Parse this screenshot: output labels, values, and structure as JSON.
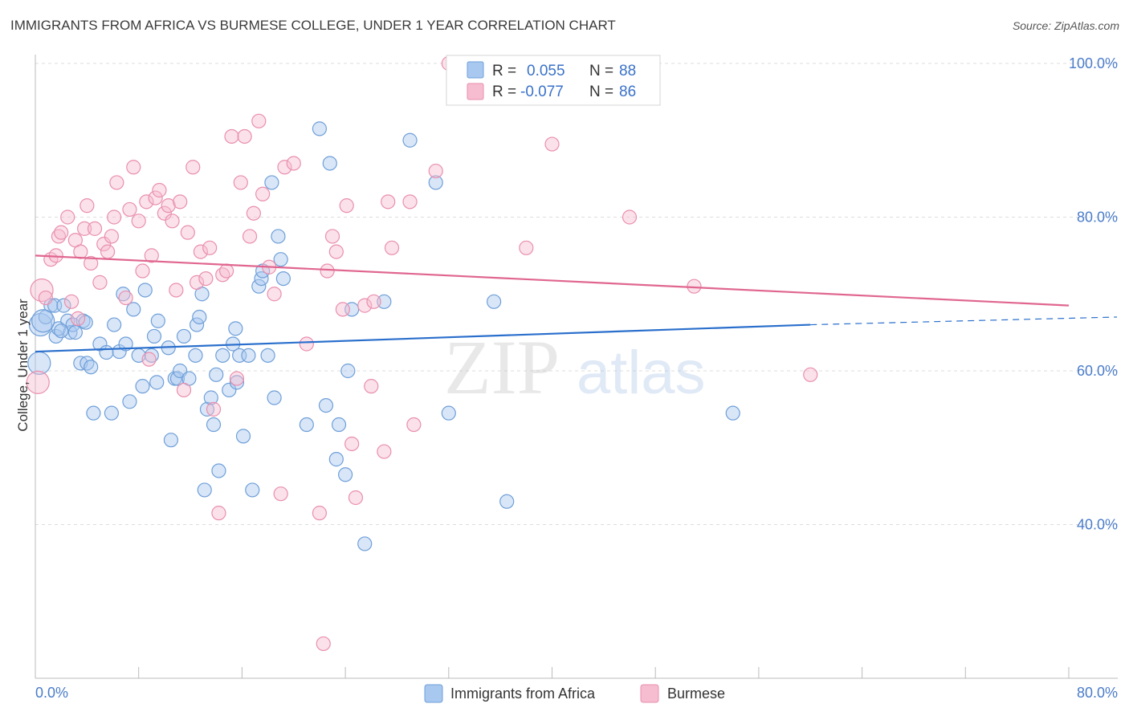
{
  "title": "IMMIGRANTS FROM AFRICA VS BURMESE COLLEGE, UNDER 1 YEAR CORRELATION CHART",
  "source": "Source: ZipAtlas.com",
  "watermark": {
    "zip": "ZIP",
    "atlas": "atlas"
  },
  "colors": {
    "blue_fill": "#a8c8f0",
    "blue_stroke": "#6f9fd8",
    "blue_line": "#2a6fcc",
    "pink_fill": "#f6bcd0",
    "pink_stroke": "#e98fae",
    "pink_line": "#e06690",
    "grid": "#dddddd",
    "tick_label": "#4a7cc9"
  },
  "legend_top": {
    "r_label": "R =",
    "n_label": "N =",
    "rows": [
      {
        "r": "0.055",
        "n": "88"
      },
      {
        "r": "-0.077",
        "n": "86"
      }
    ]
  },
  "chart_data": {
    "type": "scatter",
    "xlabel": "",
    "ylabel": "College, Under 1 year",
    "xlim": [
      0,
      80
    ],
    "ylim": [
      20,
      102
    ],
    "x_tick_labels": [
      "0.0%",
      "80.0%"
    ],
    "y_ticks": [
      40,
      60,
      80,
      100
    ],
    "y_tick_labels": [
      "40.0%",
      "60.0%",
      "80.0%",
      "100.0%"
    ],
    "grid": "horizontal dashed",
    "legend_placement": "top-center and bottom",
    "series": [
      {
        "name": "Immigrants from Africa",
        "color": "#a8c8f0",
        "r": 0.055,
        "n": 88,
        "trend": {
          "x0": 0,
          "y0": 62.5,
          "x1": 60,
          "y1": 66.0,
          "dash_to_x": 80,
          "dash_to_y": 67.0
        },
        "points": [
          [
            0.3,
            61
          ],
          [
            0.4,
            66
          ],
          [
            0.8,
            67
          ],
          [
            1.2,
            68.5
          ],
          [
            1.5,
            68.5
          ],
          [
            1.6,
            64.5
          ],
          [
            1.8,
            65.5
          ],
          [
            2.2,
            68.5
          ],
          [
            2.5,
            66.5
          ],
          [
            2.7,
            65
          ],
          [
            2.9,
            66
          ],
          [
            3.1,
            65
          ],
          [
            3.5,
            61
          ],
          [
            3.7,
            66.5
          ],
          [
            4.0,
            61
          ],
          [
            4.3,
            60.5
          ],
          [
            4.5,
            54.5
          ],
          [
            5.0,
            63.5
          ],
          [
            5.9,
            54.5
          ],
          [
            6.1,
            66
          ],
          [
            6.5,
            62.5
          ],
          [
            6.8,
            70
          ],
          [
            7.0,
            63.5
          ],
          [
            7.3,
            56
          ],
          [
            7.6,
            68
          ],
          [
            8.0,
            62
          ],
          [
            8.3,
            58
          ],
          [
            8.5,
            70.5
          ],
          [
            9.0,
            62
          ],
          [
            9.2,
            64.5
          ],
          [
            9.4,
            58.5
          ],
          [
            9.5,
            66.5
          ],
          [
            10.3,
            63
          ],
          [
            10.5,
            51
          ],
          [
            10.8,
            59
          ],
          [
            11.0,
            59
          ],
          [
            11.2,
            60
          ],
          [
            11.5,
            64.5
          ],
          [
            11.9,
            59
          ],
          [
            12.4,
            62
          ],
          [
            12.5,
            66
          ],
          [
            12.7,
            67
          ],
          [
            12.9,
            70
          ],
          [
            13.1,
            44.5
          ],
          [
            13.3,
            55
          ],
          [
            13.6,
            56.5
          ],
          [
            13.8,
            53
          ],
          [
            14.0,
            59.5
          ],
          [
            14.2,
            47
          ],
          [
            14.5,
            62
          ],
          [
            15.0,
            57.5
          ],
          [
            15.3,
            63.5
          ],
          [
            15.5,
            65.5
          ],
          [
            15.6,
            58.5
          ],
          [
            15.8,
            62
          ],
          [
            16.1,
            51.5
          ],
          [
            16.5,
            62
          ],
          [
            16.8,
            44.5
          ],
          [
            17.3,
            71
          ],
          [
            17.5,
            72
          ],
          [
            17.6,
            73
          ],
          [
            18.0,
            62
          ],
          [
            18.3,
            84.5
          ],
          [
            18.5,
            56.5
          ],
          [
            18.8,
            77.5
          ],
          [
            19.0,
            74.5
          ],
          [
            19.2,
            72
          ],
          [
            21.0,
            53
          ],
          [
            22.0,
            91.5
          ],
          [
            22.5,
            55.5
          ],
          [
            22.8,
            87
          ],
          [
            23.3,
            48.5
          ],
          [
            23.5,
            53
          ],
          [
            24.0,
            46.5
          ],
          [
            24.2,
            60
          ],
          [
            24.5,
            68
          ],
          [
            25.5,
            37.5
          ],
          [
            27.0,
            69
          ],
          [
            29.0,
            90
          ],
          [
            31.0,
            84.5
          ],
          [
            32.0,
            54.5
          ],
          [
            35.5,
            69
          ],
          [
            36.5,
            43
          ],
          [
            54.0,
            54.5
          ],
          [
            0.6,
            66.5
          ],
          [
            2.0,
            65.2
          ],
          [
            3.9,
            66.3
          ],
          [
            5.5,
            62.4
          ]
        ]
      },
      {
        "name": "Burmese",
        "color": "#f6bcd0",
        "r": -0.077,
        "n": 86,
        "trend": {
          "x0": 0,
          "y0": 75.0,
          "x1": 80,
          "y1": 68.5
        },
        "points": [
          [
            0.2,
            58.5
          ],
          [
            0.5,
            70.5
          ],
          [
            0.8,
            69.5
          ],
          [
            1.2,
            74.5
          ],
          [
            1.6,
            75
          ],
          [
            1.8,
            77.5
          ],
          [
            2.0,
            78
          ],
          [
            2.5,
            80
          ],
          [
            2.8,
            69
          ],
          [
            3.1,
            77
          ],
          [
            3.5,
            75.5
          ],
          [
            3.8,
            78.5
          ],
          [
            4.0,
            81.5
          ],
          [
            4.3,
            74
          ],
          [
            4.6,
            78.5
          ],
          [
            5.0,
            71.5
          ],
          [
            5.3,
            76.5
          ],
          [
            5.6,
            75.5
          ],
          [
            5.9,
            77.5
          ],
          [
            6.1,
            80
          ],
          [
            6.3,
            84.5
          ],
          [
            7.0,
            69.5
          ],
          [
            7.3,
            81
          ],
          [
            7.6,
            86.5
          ],
          [
            8.0,
            79.5
          ],
          [
            8.3,
            73
          ],
          [
            8.6,
            82
          ],
          [
            9.0,
            75
          ],
          [
            9.3,
            82.5
          ],
          [
            9.6,
            83.5
          ],
          [
            10.0,
            80.5
          ],
          [
            10.3,
            81.5
          ],
          [
            10.6,
            79.5
          ],
          [
            10.9,
            70.5
          ],
          [
            11.2,
            82
          ],
          [
            11.5,
            57.5
          ],
          [
            11.8,
            78
          ],
          [
            12.2,
            86.5
          ],
          [
            12.5,
            71.5
          ],
          [
            12.8,
            75.5
          ],
          [
            13.2,
            72
          ],
          [
            13.5,
            76
          ],
          [
            13.8,
            55
          ],
          [
            14.2,
            41.5
          ],
          [
            14.5,
            72.5
          ],
          [
            14.8,
            73
          ],
          [
            15.2,
            90.5
          ],
          [
            15.6,
            59
          ],
          [
            15.9,
            84.5
          ],
          [
            16.2,
            90.5
          ],
          [
            16.6,
            77.5
          ],
          [
            16.9,
            80.5
          ],
          [
            17.3,
            92.5
          ],
          [
            17.6,
            83
          ],
          [
            18.1,
            73.5
          ],
          [
            18.5,
            70
          ],
          [
            19.0,
            44
          ],
          [
            19.3,
            86.5
          ],
          [
            20.0,
            87
          ],
          [
            21.0,
            63.5
          ],
          [
            22.0,
            41.5
          ],
          [
            22.3,
            24.5
          ],
          [
            22.6,
            73
          ],
          [
            23.0,
            77.5
          ],
          [
            23.3,
            75.5
          ],
          [
            23.8,
            68
          ],
          [
            24.1,
            81.5
          ],
          [
            24.5,
            50.5
          ],
          [
            24.8,
            43.5
          ],
          [
            25.5,
            68.5
          ],
          [
            26.0,
            58
          ],
          [
            26.2,
            69
          ],
          [
            27.0,
            49.5
          ],
          [
            27.3,
            82
          ],
          [
            27.6,
            76
          ],
          [
            29.0,
            82
          ],
          [
            29.3,
            53
          ],
          [
            31.0,
            86
          ],
          [
            32.0,
            100
          ],
          [
            38.0,
            76
          ],
          [
            40.0,
            89.5
          ],
          [
            46.0,
            80
          ],
          [
            51.0,
            71
          ],
          [
            60.0,
            59.5
          ],
          [
            3.3,
            66.8
          ],
          [
            8.8,
            61.5
          ]
        ]
      }
    ]
  },
  "bottom_legend": [
    "Immigrants from Africa",
    "Burmese"
  ]
}
